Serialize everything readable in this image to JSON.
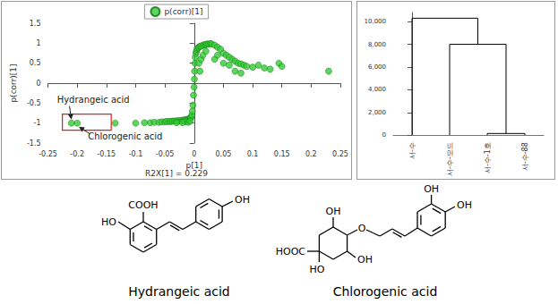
{
  "chart_data": [
    {
      "type": "scatter",
      "xlabel": "p[1]",
      "ylabel": "p(corr)[1]",
      "legend": "top",
      "marker": "circle",
      "grid": false,
      "xlim": [
        -0.25,
        0.25
      ],
      "xticks": [
        -0.25,
        -0.2,
        -0.15,
        -0.1,
        -0.05,
        0,
        0.05,
        0.1,
        0.15,
        0.2,
        0.25
      ],
      "ylim": [
        -1.5,
        1.5
      ],
      "yticks": [
        -1.5,
        -1,
        -0.5,
        0,
        0.5,
        1,
        1.5
      ],
      "series": [
        {
          "name": "p(corr)[1]",
          "color": "#33cc33",
          "x": [
            -0.21,
            -0.2,
            -0.135,
            -0.1,
            -0.085,
            -0.075,
            -0.068,
            -0.06,
            -0.055,
            -0.05,
            -0.047,
            -0.043,
            -0.04,
            -0.037,
            -0.034,
            -0.031,
            -0.028,
            -0.025,
            -0.022,
            -0.02,
            -0.018,
            -0.016,
            -0.014,
            -0.012,
            -0.01,
            -0.008,
            -0.006,
            -0.005,
            -0.004,
            -0.003,
            -0.002,
            -0.001,
            -0.03,
            -0.015,
            -0.02,
            -0.01,
            -0.007,
            0,
            0.0005,
            0.001,
            0.0015,
            0.002,
            0.003,
            0.004,
            0.005,
            0.006,
            0.008,
            0.01,
            0.012,
            0.015,
            0.018,
            0.02,
            0.022,
            0.025,
            0.028,
            0.03,
            0.035,
            0.04,
            0.045,
            0.05,
            0.055,
            0.06,
            0.065,
            0.07,
            0.075,
            0.08,
            0.085,
            0.09,
            0.1,
            0.11,
            0.12,
            0.13,
            0.145,
            0.15,
            0.05,
            0.06,
            0.07,
            0.08,
            0.035,
            0.04,
            0.23,
            0.008,
            0.01,
            0.012,
            0.015,
            0.02
          ],
          "values": [
            -1,
            -1,
            -1,
            -1,
            -0.99,
            -0.99,
            -0.98,
            -0.98,
            -0.97,
            -0.97,
            -0.96,
            -0.96,
            -0.96,
            -0.95,
            -0.95,
            -0.95,
            -0.94,
            -0.94,
            -0.94,
            -0.93,
            -0.93,
            -0.92,
            -0.92,
            -0.91,
            -0.9,
            -0.89,
            -0.87,
            -0.85,
            -0.8,
            -0.7,
            -0.55,
            -0.3,
            -0.99,
            -0.97,
            -0.99,
            -0.98,
            -0.95,
            -0.1,
            0.1,
            0.3,
            0.5,
            0.65,
            0.75,
            0.8,
            0.85,
            0.88,
            0.9,
            0.92,
            0.93,
            0.95,
            0.96,
            0.97,
            0.98,
            0.98,
            0.99,
            0.98,
            0.95,
            0.9,
            0.85,
            0.75,
            0.7,
            0.65,
            0.6,
            0.55,
            0.5,
            0.48,
            0.45,
            0.42,
            0.4,
            0.45,
            0.38,
            0.35,
            0.5,
            0.42,
            0.5,
            0.45,
            0.3,
            0.25,
            0.6,
            0.7,
            0.3,
            0.5,
            0.3,
            0.6,
            0.7,
            0.8
          ]
        }
      ],
      "annotations": [
        {
          "text": "Hydrangeic acid",
          "x": -0.21,
          "y": -1
        },
        {
          "text": "Chlorogenic acid",
          "x": -0.2,
          "y": -1
        },
        {
          "text": "R2X[1] = 0.229"
        }
      ]
    },
    {
      "type": "dendrogram",
      "color": "#000000",
      "categories": [
        "서-수",
        "서-수-모드",
        "서-수-1호",
        "서-수-88"
      ],
      "merges": [
        [
          2,
          3,
          150
        ],
        [
          1,
          4,
          8000
        ],
        [
          0,
          5,
          10300
        ]
      ],
      "ylim": [
        0,
        10800
      ],
      "yticks": [
        0,
        {
          "value": 2000,
          "label": "2,000"
        },
        {
          "value": 4000,
          "label": "4,000"
        },
        {
          "value": 6000,
          "label": "6,000"
        },
        {
          "value": 8000,
          "label": "8,000"
        },
        {
          "value": 10000,
          "label": "10,000"
        }
      ]
    }
  ],
  "structures": [
    {
      "name": "Hydrangeic acid",
      "labels": [
        "COOH",
        "HO",
        "OH"
      ]
    },
    {
      "name": "Chlorogenic acid",
      "labels": [
        "OH",
        "OH",
        "OH",
        "O",
        "HOOC",
        "HO",
        "OH"
      ]
    }
  ]
}
